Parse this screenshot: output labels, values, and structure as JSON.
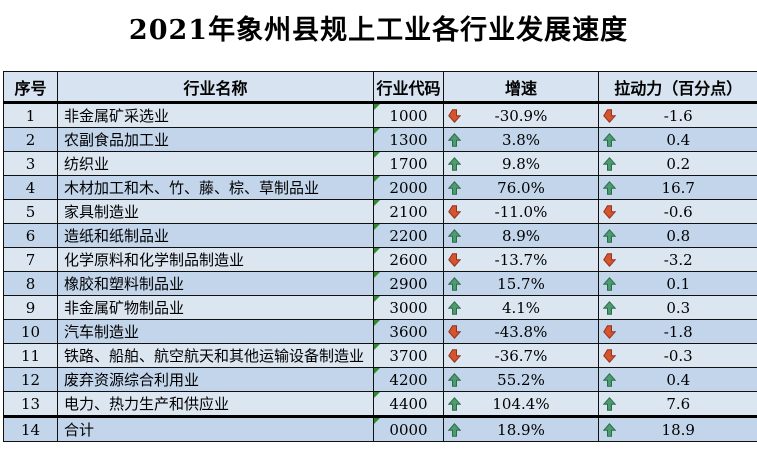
{
  "title": "2021年象州县规上工业各行业发展速度",
  "colors": {
    "row_light": "#dce6f1",
    "row_dark": "#c2d5ea",
    "header_bg": "#d7e3f0",
    "border": "#111111",
    "up_arrow_fill": "#4d9c70",
    "up_arrow_stroke": "#2c6b4a",
    "down_arrow_fill": "#d6532f",
    "down_arrow_stroke": "#93331a",
    "corner_flag_green": "#2e8b2e"
  },
  "table": {
    "headers": [
      "序号",
      "行业名称",
      "行业代码",
      "增速",
      "拉动力（百分点）"
    ],
    "rows": [
      {
        "no": "1",
        "name": "非金属矿采选业",
        "code": "1000",
        "growth": "-30.9%",
        "growth_dir": "down",
        "pull": "-1.6",
        "pull_dir": "down"
      },
      {
        "no": "2",
        "name": "农副食品加工业",
        "code": "1300",
        "growth": "3.8%",
        "growth_dir": "up",
        "pull": "0.4",
        "pull_dir": "up"
      },
      {
        "no": "3",
        "name": "纺织业",
        "code": "1700",
        "growth": "9.8%",
        "growth_dir": "up",
        "pull": "0.2",
        "pull_dir": "up"
      },
      {
        "no": "4",
        "name": "木材加工和木、竹、藤、棕、草制品业",
        "code": "2000",
        "growth": "76.0%",
        "growth_dir": "up",
        "pull": "16.7",
        "pull_dir": "up"
      },
      {
        "no": "5",
        "name": "家具制造业",
        "code": "2100",
        "growth": "-11.0%",
        "growth_dir": "down",
        "pull": "-0.6",
        "pull_dir": "down"
      },
      {
        "no": "6",
        "name": "造纸和纸制品业",
        "code": "2200",
        "growth": "8.9%",
        "growth_dir": "up",
        "pull": "0.8",
        "pull_dir": "up"
      },
      {
        "no": "7",
        "name": "化学原料和化学制品制造业",
        "code": "2600",
        "growth": "-13.7%",
        "growth_dir": "down",
        "pull": "-3.2",
        "pull_dir": "down"
      },
      {
        "no": "8",
        "name": "橡胶和塑料制品业",
        "code": "2900",
        "growth": "15.7%",
        "growth_dir": "up",
        "pull": "0.1",
        "pull_dir": "up"
      },
      {
        "no": "9",
        "name": "非金属矿物制品业",
        "code": "3000",
        "growth": "4.1%",
        "growth_dir": "up",
        "pull": "0.3",
        "pull_dir": "up"
      },
      {
        "no": "10",
        "name": "汽车制造业",
        "code": "3600",
        "growth": "-43.8%",
        "growth_dir": "down",
        "pull": "-1.8",
        "pull_dir": "down"
      },
      {
        "no": "11",
        "name": "铁路、船舶、航空航天和其他运输设备制造业",
        "code": "3700",
        "growth": "-36.7%",
        "growth_dir": "down",
        "pull": "-0.3",
        "pull_dir": "down"
      },
      {
        "no": "12",
        "name": "废弃资源综合利用业",
        "code": "4200",
        "growth": "55.2%",
        "growth_dir": "up",
        "pull": "0.4",
        "pull_dir": "up"
      },
      {
        "no": "13",
        "name": "电力、热力生产和供应业",
        "code": "4400",
        "growth": "104.4%",
        "growth_dir": "up",
        "pull": "7.6",
        "pull_dir": "up"
      },
      {
        "no": "14",
        "name": "合计",
        "code": "0000",
        "growth": "18.9%",
        "growth_dir": "up",
        "pull": "18.9",
        "pull_dir": "up"
      }
    ]
  },
  "chart_data": {
    "type": "table",
    "title": "2021年象州县规上工业各行业发展速度",
    "columns": [
      "序号",
      "行业名称",
      "行业代码",
      "增速",
      "拉动力（百分点）"
    ],
    "rows": [
      [
        1,
        "非金属矿采选业",
        "1000",
        -30.9,
        -1.6
      ],
      [
        2,
        "农副食品加工业",
        "1300",
        3.8,
        0.4
      ],
      [
        3,
        "纺织业",
        "1700",
        9.8,
        0.2
      ],
      [
        4,
        "木材加工和木、竹、藤、棕、草制品业",
        "2000",
        76.0,
        16.7
      ],
      [
        5,
        "家具制造业",
        "2100",
        -11.0,
        -0.6
      ],
      [
        6,
        "造纸和纸制品业",
        "2200",
        8.9,
        0.8
      ],
      [
        7,
        "化学原料和化学制品制造业",
        "2600",
        -13.7,
        -3.2
      ],
      [
        8,
        "橡胶和塑料制品业",
        "2900",
        15.7,
        0.1
      ],
      [
        9,
        "非金属矿物制品业",
        "3000",
        4.1,
        0.3
      ],
      [
        10,
        "汽车制造业",
        "3600",
        -43.8,
        -1.8
      ],
      [
        11,
        "铁路、船舶、航空航天和其他运输设备制造业",
        "3700",
        -36.7,
        -0.3
      ],
      [
        12,
        "废弃资源综合利用业",
        "4200",
        55.2,
        0.4
      ],
      [
        13,
        "电力、热力生产和供应业",
        "4400",
        104.4,
        7.6
      ],
      [
        14,
        "合计",
        "0000",
        18.9,
        18.9
      ]
    ],
    "notes": "growth column is percent; pull column is percentage points; negative values shown with red down arrow, positive with green up arrow"
  }
}
